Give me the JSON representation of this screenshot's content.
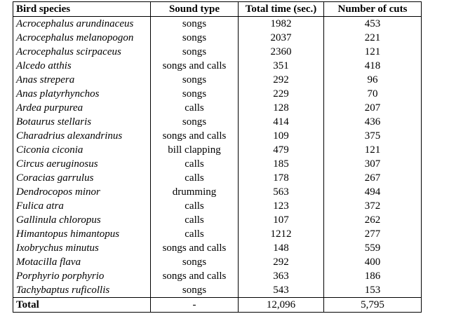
{
  "table": {
    "header": [
      "Bird species",
      "Sound type",
      "Total time (sec.)",
      "Number of cuts"
    ],
    "rows": [
      [
        "Acrocephalus arundinaceus",
        "songs",
        "1982",
        "453"
      ],
      [
        "Acrocephalus melanopogon",
        "songs",
        "2037",
        "221"
      ],
      [
        "Acrocephalus scirpaceus",
        "songs",
        "2360",
        "121"
      ],
      [
        "Alcedo atthis",
        "songs and calls",
        "351",
        "418"
      ],
      [
        "Anas strepera",
        "songs",
        "292",
        "96"
      ],
      [
        "Anas platyrhynchos",
        "songs",
        "229",
        "70"
      ],
      [
        "Ardea purpurea",
        "calls",
        "128",
        "207"
      ],
      [
        "Botaurus stellaris",
        "songs",
        "414",
        "436"
      ],
      [
        "Charadrius alexandrinus",
        "songs and calls",
        "109",
        "375"
      ],
      [
        "Ciconia ciconia",
        "bill clapping",
        "479",
        "121"
      ],
      [
        "Circus aeruginosus",
        "calls",
        "185",
        "307"
      ],
      [
        "Coracias garrulus",
        "calls",
        "178",
        "267"
      ],
      [
        "Dendrocopos minor",
        "drumming",
        "563",
        "494"
      ],
      [
        "Fulica atra",
        "calls",
        "123",
        "372"
      ],
      [
        "Gallinula chloropus",
        "calls",
        "107",
        "262"
      ],
      [
        "Himantopus himantopus",
        "calls",
        "1212",
        "277"
      ],
      [
        "Ixobrychus minutus",
        "songs and calls",
        "148",
        "559"
      ],
      [
        "Motacilla flava",
        "songs",
        "292",
        "400"
      ],
      [
        "Porphyrio porphyrio",
        "songs and calls",
        "363",
        "186"
      ],
      [
        "Tachybaptus ruficollis",
        "songs",
        "543",
        "153"
      ]
    ],
    "total": [
      "Total",
      "-",
      "12,096",
      "5,795"
    ]
  }
}
